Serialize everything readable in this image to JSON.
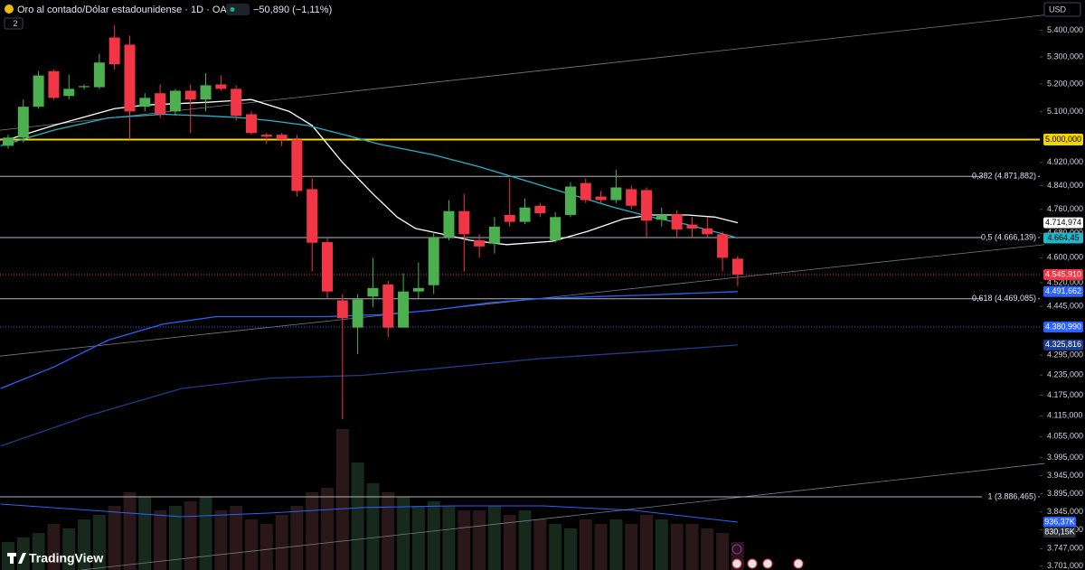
{
  "chart_data": {
    "type": "candlestick",
    "title": "Oro al contado/Dólar estadounidense · 1D · OANDA",
    "change": "−50,890 (−1,11%)",
    "indicators_count": "2",
    "currency": "USD",
    "brand": "TradingView",
    "log_scale": true,
    "ylim": [
      3691,
      5517
    ],
    "yticks": [
      {
        "value": 5400,
        "label": "5.400,000"
      },
      {
        "value": 5300,
        "label": "5.300,000"
      },
      {
        "value": 5200,
        "label": "5.200,000"
      },
      {
        "value": 5100,
        "label": "5.100,000"
      },
      {
        "value": 4920,
        "label": "4.920,000"
      },
      {
        "value": 4840,
        "label": "4.840,000"
      },
      {
        "value": 4760,
        "label": "4.760,000"
      },
      {
        "value": 4680,
        "label": "4.680,000"
      },
      {
        "value": 4600,
        "label": "4.600,000"
      },
      {
        "value": 4520,
        "label": "4.520,000"
      },
      {
        "value": 4445,
        "label": "4.445,000"
      },
      {
        "value": 4295,
        "label": "4.295,000"
      },
      {
        "value": 4235,
        "label": "4.235,000"
      },
      {
        "value": 4175,
        "label": "4.175,000"
      },
      {
        "value": 4115,
        "label": "4.115,000"
      },
      {
        "value": 4055,
        "label": "4.055,000"
      },
      {
        "value": 3995,
        "label": "3.995,000"
      },
      {
        "value": 3945,
        "label": "3.945,000"
      },
      {
        "value": 3895,
        "label": "3.895,000"
      },
      {
        "value": 3845,
        "label": "3.845,000"
      },
      {
        "value": 3797,
        "label": "3.797,000"
      },
      {
        "value": 3747,
        "label": "3.747,000"
      },
      {
        "value": 3701,
        "label": "3.701,000"
      }
    ],
    "up_color": "#4caf50",
    "down_color": "#f23645",
    "candles": {
      "open": [
        4978,
        5007,
        5117,
        5247,
        5156,
        5188,
        5188,
        5373,
        5346,
        5117,
        5166,
        5100,
        5175,
        5143,
        5198,
        5182,
        5090,
        5017,
        5017,
        5000,
        4828,
        4651,
        4464,
        4379,
        4476,
        4514,
        4379,
        4492,
        4512,
        4666,
        4754,
        4657,
        4646,
        4741,
        4718,
        4772,
        4657,
        4741,
        4849,
        4803,
        4791,
        4828,
        4825,
        4725,
        4744,
        4709,
        4696,
        4677,
        4597
      ],
      "high": [
        5017,
        5143,
        5247,
        5253,
        5234,
        5198,
        5312,
        5420,
        5380,
        5166,
        5198,
        5182,
        5198,
        5240,
        5231,
        5195,
        5100,
        5023,
        5023,
        5017,
        4865,
        4666,
        4484,
        4484,
        4600,
        4526,
        4550,
        4585,
        4686,
        4791,
        4812,
        4677,
        4734,
        4865,
        4797,
        4781,
        4750,
        4852,
        4865,
        4822,
        4895,
        4840,
        4834,
        4766,
        4757,
        4734,
        4734,
        4686,
        4606
      ],
      "low": [
        4968,
        4990,
        5110,
        5143,
        5143,
        5179,
        5182,
        5253,
        5000,
        5100,
        5077,
        5084,
        5023,
        5100,
        5175,
        5067,
        5017,
        4984,
        4978,
        4803,
        4556,
        4470,
        4105,
        4298,
        4442,
        4350,
        4385,
        4470,
        4484,
        4657,
        4556,
        4600,
        4614,
        4702,
        4710,
        4734,
        4649,
        4734,
        4781,
        4781,
        4781,
        4760,
        4666,
        4702,
        4666,
        4666,
        4666,
        4556,
        4509
      ],
      "close": [
        5007,
        5117,
        5231,
        5149,
        5182,
        5192,
        5279,
        5273,
        5100,
        5149,
        5090,
        5175,
        5143,
        5195,
        5182,
        5084,
        5023,
        5010,
        5000,
        4822,
        4649,
        4492,
        4408,
        4467,
        4503,
        4379,
        4492,
        4503,
        4666,
        4754,
        4677,
        4637,
        4702,
        4718,
        4766,
        4747,
        4734,
        4837,
        4791,
        4791,
        4834,
        4772,
        4722,
        4741,
        4693,
        4696,
        4677,
        4600,
        4545.91
      ]
    },
    "volume": [
      724,
      772,
      820,
      917,
      869,
      965,
      1013,
      1110,
      1255,
      1206,
      1062,
      1110,
      1158,
      1206,
      1062,
      1110,
      965,
      917,
      1013,
      1110,
      1255,
      1303,
      1930,
      1573,
      1351,
      1255,
      1206,
      1110,
      1158,
      1110,
      1062,
      1062,
      1110,
      1013,
      1062,
      965,
      917,
      869,
      965,
      917,
      965,
      917,
      1013,
      965,
      917,
      917,
      869,
      820,
      724
    ],
    "volume_lim": [
      0,
      6513
    ],
    "volume_up_color": "#17281c",
    "volume_down_color": "#2a1719",
    "volume_ma": {
      "color": "#2962ff",
      "x": [
        -0.5,
        5.4,
        11.4,
        17.3,
        23.3,
        29.2,
        35.2,
        41.1,
        48
      ],
      "values": [
        1129,
        1062,
        994,
        1033,
        1091,
        1110,
        1110,
        1062,
        936.37
      ]
    },
    "moving_averages": [
      {
        "color": "#ffffff",
        "x": [
          0,
          3,
          7,
          9,
          13,
          16,
          18.5,
          20,
          22,
          24,
          25.6,
          26.8,
          28.6,
          30.4,
          32.8,
          35.8,
          38.1,
          40.5,
          42.3,
          44.7,
          46.5,
          48
        ],
        "values": [
          5000,
          5050,
          5110,
          5123,
          5133,
          5143,
          5100,
          5050,
          4920,
          4812,
          4734,
          4696,
          4677,
          4657,
          4643,
          4654,
          4686,
          4728,
          4741,
          4741,
          4734,
          4714.974
        ]
      },
      {
        "color": "#22b5c8",
        "x": [
          -0.5,
          3,
          6.6,
          10.2,
          13.1,
          15.5,
          17.3,
          19.7,
          22.1,
          24.4,
          28,
          31,
          34,
          36.9,
          39.9,
          42.3,
          44.7,
          47.1,
          48
        ],
        "values": [
          4978,
          5033,
          5077,
          5090,
          5084,
          5077,
          5067,
          5050,
          5017,
          4984,
          4946,
          4905,
          4858,
          4812,
          4766,
          4734,
          4709,
          4677,
          4664.45
        ]
      },
      {
        "color": "#2962ff",
        "x": [
          -0.5,
          3,
          6.6,
          10.2,
          13.7,
          17.3,
          20.9,
          24.4,
          28,
          31.6,
          35.2,
          38.7,
          42.3,
          44.7,
          48
        ],
        "values": [
          4195,
          4259,
          4341,
          4390,
          4413,
          4413,
          4413,
          4419,
          4433,
          4456,
          4470,
          4476,
          4481,
          4486,
          4491.662
        ]
      },
      {
        "color": "#1e3c8c",
        "x": [
          -0.5,
          5.4,
          11.4,
          17.3,
          23.3,
          29.2,
          35.2,
          41.1,
          48
        ],
        "values": [
          4028,
          4117,
          4195,
          4226,
          4234,
          4259,
          4285,
          4303,
          4325.816
        ]
      }
    ],
    "trendlines": [
      {
        "color": "#787b86",
        "start": [
          -0.54,
          5033
        ],
        "end": [
          68.2,
          5459
        ]
      },
      {
        "color": "#787b86",
        "start": [
          -0.54,
          4292
        ],
        "end": [
          68.2,
          4643
        ]
      },
      {
        "color": "#787b86",
        "start": [
          4.8,
          3691
        ],
        "end": [
          68.2,
          3979
        ]
      }
    ],
    "key_level": {
      "value": 5000,
      "label": "5.000,000",
      "color": "#f5d400"
    },
    "fib_levels": [
      {
        "value": 4871.882,
        "label": "0,382 (4.871,882)"
      },
      {
        "value": 4666.139,
        "label": "0,5 (4.666,139)"
      },
      {
        "value": 4469.085,
        "label": "0,618 (4.469,085)"
      },
      {
        "value": 3886.465,
        "label": "1 (3.886,465)"
      }
    ],
    "price_lines": [
      {
        "value": 4545.91,
        "color": "#f23645"
      },
      {
        "value": 4380.99,
        "color": "#2962ff"
      }
    ],
    "price_labels": [
      {
        "value": 4714.974,
        "label": "4.714,974",
        "bg": "#ffffff",
        "fg": "#000000"
      },
      {
        "value": 4664.45,
        "label": "4.664,45",
        "bg": "#22b5c8",
        "fg": "#000000"
      },
      {
        "value": 4545.91,
        "label": "4.545,910",
        "bg": "#f23645",
        "fg": "#ffffff"
      },
      {
        "value": 4491.662,
        "label": "4.491,662",
        "bg": "#2962ff",
        "fg": "#ffffff"
      },
      {
        "value": 4380.99,
        "label": "4.380,990",
        "bg": "#2962ff",
        "fg": "#ffffff"
      },
      {
        "value": 4325.816,
        "label": "4.325,816",
        "bg": "#1e3c8c",
        "fg": "#ffffff"
      }
    ],
    "volume_labels": [
      {
        "value": 936.37,
        "label": "936,37K",
        "bg": "#2962ff",
        "fg": "#ffffff"
      },
      {
        "value": 830.15,
        "label": "830,15K",
        "bg": "#2a2e39",
        "fg": "#ffffff"
      }
    ]
  }
}
